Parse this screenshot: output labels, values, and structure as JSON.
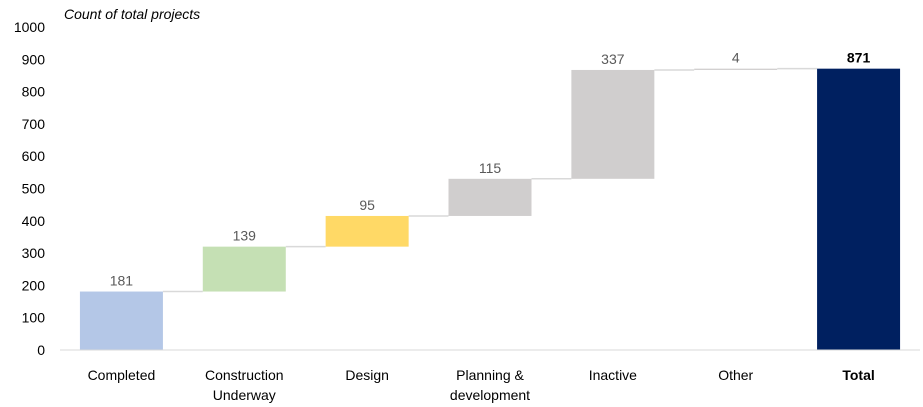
{
  "chart_data": {
    "type": "bar",
    "subtype": "waterfall",
    "title": "",
    "xlabel": "",
    "ylabel": "Count of total projects",
    "ylim": [
      0,
      1000
    ],
    "y_ticks": [
      "0",
      "100",
      "200",
      "300",
      "400",
      "500",
      "600",
      "700",
      "800",
      "900",
      "1000"
    ],
    "grid": false,
    "legend": "none",
    "categories": [
      [
        "Completed"
      ],
      [
        "Construction",
        "Underway"
      ],
      [
        "Design"
      ],
      [
        "Planning &",
        "development"
      ],
      [
        "Inactive"
      ],
      [
        "Other"
      ],
      [
        "Total"
      ]
    ],
    "values": [
      181,
      139,
      95,
      115,
      337,
      4,
      871
    ],
    "data_labels": [
      "181",
      "139",
      "95",
      "115",
      "337",
      "4",
      "871"
    ],
    "is_total": [
      false,
      false,
      false,
      false,
      false,
      false,
      true
    ],
    "colors": [
      "#b4c7e7",
      "#c5e0b4",
      "#ffd966",
      "#d0cece",
      "#d0cece",
      "#d0cece",
      "#002060"
    ],
    "connector_color": "#d9d9d9",
    "axis_color": "#d9d9d9"
  }
}
